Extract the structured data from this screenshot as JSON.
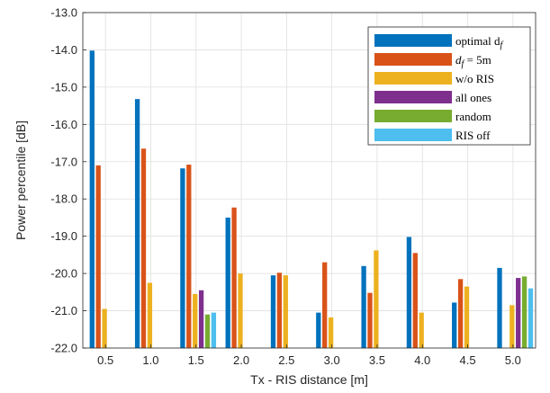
{
  "chart_data": {
    "type": "bar",
    "title": "",
    "xlabel": "Tx - RIS distance [m]",
    "ylabel": "Power percentile [dB]",
    "ylim": [
      -22,
      -13
    ],
    "yticks": [
      "-22.0",
      "-21.0",
      "-20.0",
      "-19.0",
      "-18.0",
      "-17.0",
      "-16.0",
      "-15.0",
      "-14.0",
      "-13.0"
    ],
    "categories": [
      "0.5",
      "1.0",
      "1.5",
      "2.0",
      "2.5",
      "3.0",
      "3.5",
      "4.0",
      "4.5",
      "5.0"
    ],
    "grid": true,
    "legend_position": "top-right",
    "series": [
      {
        "name": "optimal d",
        "name_subscript": "f",
        "color": "#0072BD",
        "values": [
          -14.02,
          -15.32,
          -17.18,
          -18.5,
          -20.05,
          -21.05,
          -19.8,
          -19.02,
          -20.78,
          -19.85
        ]
      },
      {
        "name": "d",
        "name_subscript": "f",
        "name_suffix": " = 5m",
        "color": "#D95319",
        "values": [
          -17.1,
          -16.65,
          -17.08,
          -18.23,
          -19.98,
          -19.7,
          -20.52,
          -19.45,
          -20.15,
          -22.0
        ]
      },
      {
        "name": "w/o RIS",
        "color": "#EDB120",
        "values": [
          -20.95,
          -20.25,
          -20.55,
          -20.0,
          -20.05,
          -21.18,
          -19.38,
          -21.05,
          -20.35,
          -20.85
        ]
      },
      {
        "name": "all ones",
        "color": "#7E2F8E",
        "values": [
          -22.0,
          -22.0,
          -20.45,
          -22.0,
          -22.0,
          -22.0,
          -22.0,
          -22.0,
          -22.0,
          -20.12
        ]
      },
      {
        "name": "random",
        "color": "#77AC30",
        "values": [
          -22.0,
          -22.0,
          -21.1,
          -22.0,
          -22.0,
          -22.0,
          -22.0,
          -22.0,
          -22.0,
          -20.08
        ]
      },
      {
        "name": "RIS off",
        "color": "#4DBEEE",
        "values": [
          -22.0,
          -22.0,
          -21.05,
          -22.0,
          -22.0,
          -22.0,
          -22.0,
          -22.0,
          -22.0,
          -20.4
        ]
      }
    ]
  }
}
